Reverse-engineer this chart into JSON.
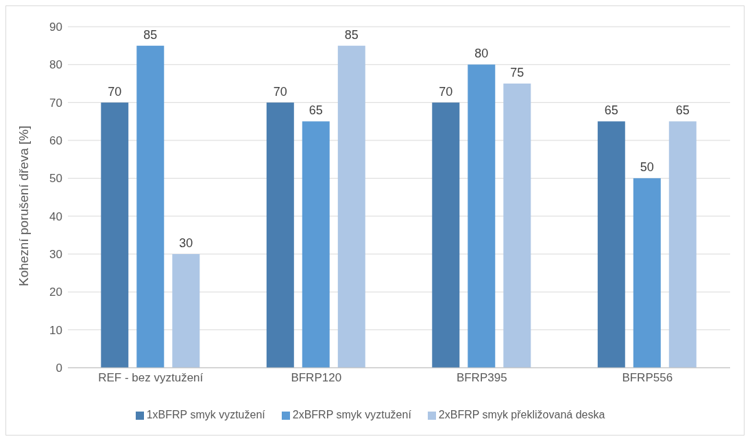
{
  "chart_data": {
    "type": "bar",
    "ylabel": "Kohezní porušení dřeva [%]",
    "categories": [
      "REF - bez vyztužení",
      "BFRP120",
      "BFRP395",
      "BFRP556"
    ],
    "series": [
      {
        "name": "1xBFRP smyk vyztužení",
        "color": "#4a7eb0",
        "values": [
          70,
          70,
          70,
          65
        ]
      },
      {
        "name": "2xBFRP smyk vyztužení",
        "color": "#5b9bd5",
        "values": [
          85,
          65,
          80,
          50
        ]
      },
      {
        "name": "2xBFRP smyk překližovaná deska",
        "color": "#adc6e5",
        "values": [
          30,
          85,
          75,
          65
        ]
      }
    ],
    "ylim": [
      0,
      90
    ],
    "yticks": [
      0,
      10,
      20,
      30,
      40,
      50,
      60,
      70,
      80,
      90
    ],
    "grid": "y",
    "legend": "bottom",
    "data_labels": true
  }
}
